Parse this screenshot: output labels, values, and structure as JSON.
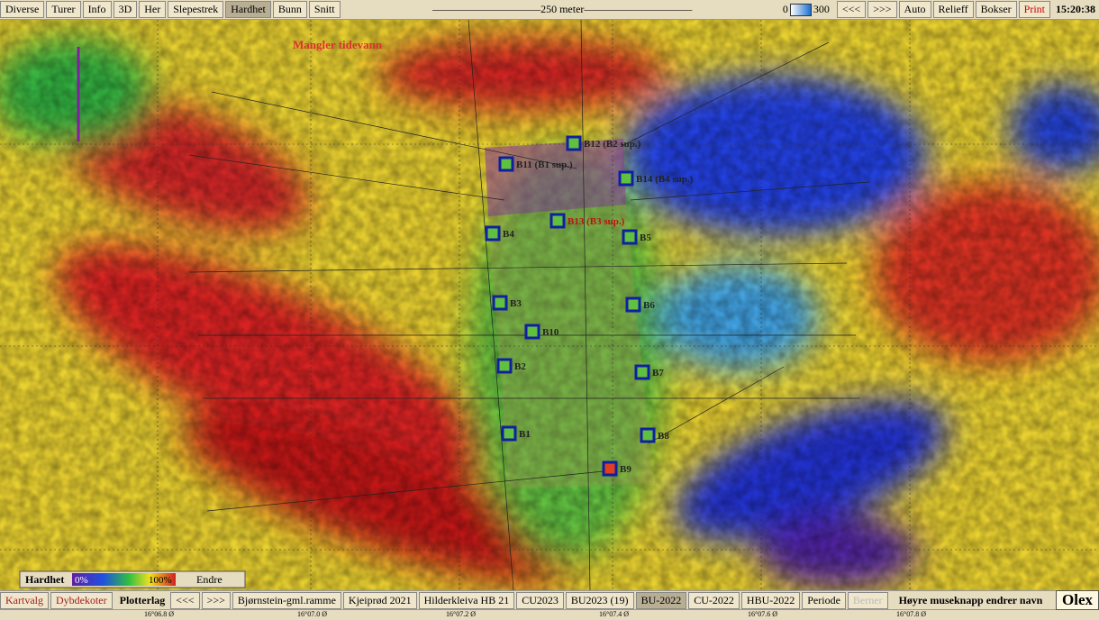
{
  "toolbar": {
    "buttons": [
      "Diverse",
      "Turer",
      "Info",
      "3D",
      "Her",
      "Slepestrek",
      "Hardhet",
      "Bunn",
      "Snitt"
    ],
    "scale": "250 meter",
    "depth_min": "0",
    "depth_max": "300",
    "right_buttons": [
      "<<<",
      ">>>",
      "Auto",
      "Relieff",
      "Bokser",
      "Print"
    ],
    "clock": "15:20:38"
  },
  "map": {
    "notice": "Mangler tidevann",
    "stations": [
      "B12 (B2 sup.)",
      "B11 (B1 sup.)",
      "B14 (B4 sup.)",
      "B13 (B3 sup.)",
      "B4",
      "B5",
      "B3",
      "B6",
      "B10",
      "B2",
      "B7",
      "B1",
      "B8",
      "B9"
    ],
    "bottom_coords": [
      "16°06.8 Ø",
      "16°07.0 Ø",
      "16°07.2 Ø",
      "16°07.4 Ø",
      "16°07.6 Ø",
      "16°07.8 Ø"
    ]
  },
  "legend": {
    "title": "Hardhet",
    "min": "0%",
    "max": "100%",
    "button": "Endre"
  },
  "bottombar": {
    "buttons": [
      "Kartvalg",
      "Dybdekoter"
    ],
    "label": "Plotterlag",
    "layers": [
      "<<<",
      ">>>",
      "Bjørnstein-gml.ramme",
      "Kjeiprød 2021",
      "Hilderkleiva HB 21",
      "CU2023",
      "BU2023 (19)",
      "BU-2022",
      "CU-2022",
      "HBU-2022",
      "Periode",
      "Berner"
    ],
    "hint": "Høyre museknapp endrer navn",
    "brand": "Olex"
  }
}
